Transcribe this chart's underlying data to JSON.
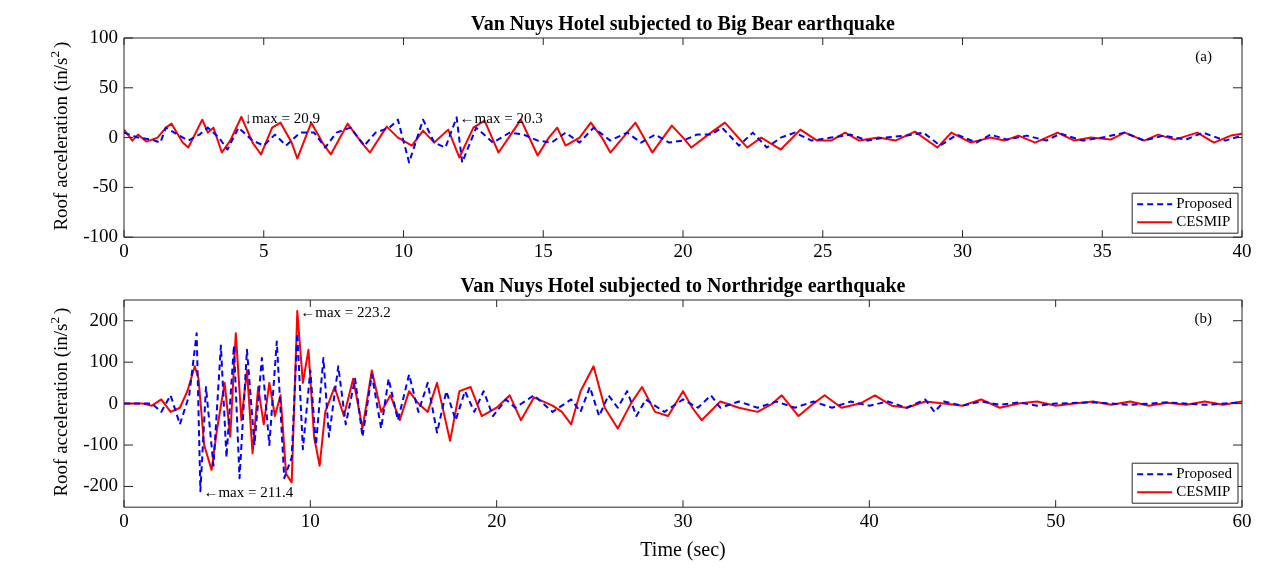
{
  "chart_data": [
    {
      "type": "line",
      "title": "Van Nuys Hotel subjected to Big Bear earthquake",
      "ylabel": "Roof acceleration (in/s$^{2}$)",
      "xlim": [
        0,
        40
      ],
      "xticks": [
        0,
        5,
        10,
        15,
        20,
        25,
        30,
        35,
        40
      ],
      "ylim": [
        -100,
        100
      ],
      "yticks": [
        -100,
        -50,
        0,
        50,
        100
      ],
      "grid": false,
      "legend": "bottom right",
      "marker": "none",
      "annotations": [
        {
          "text": "↓max = 20.9",
          "x": 4.2,
          "y": 20.9
        },
        {
          "text": "←max = 20.3",
          "x": 11.9,
          "y": 20.3
        },
        "(a)"
      ],
      "series": [
        {
          "name": "Proposed",
          "color": "#0000ff",
          "line_style": "dashed",
          "x": [
            0,
            0.5,
            1,
            1.3,
            1.5,
            1.8,
            2.3,
            2.7,
            3.0,
            3.4,
            3.7,
            4.1,
            4.6,
            5.0,
            5.4,
            5.8,
            6.3,
            6.8,
            7.2,
            7.6,
            8.1,
            8.6,
            9.0,
            9.5,
            9.8,
            10.2,
            10.7,
            11.1,
            11.5,
            11.9,
            12.1,
            12.6,
            13.2,
            13.8,
            14.3,
            14.8,
            15.3,
            15.8,
            16.3,
            16.8,
            17.4,
            18,
            18.5,
            19,
            19.5,
            20,
            20.5,
            21,
            21.4,
            22,
            22.5,
            23,
            23.5,
            24,
            24.6,
            25.3,
            26,
            26.6,
            27.2,
            28,
            28.6,
            29.2,
            29.8,
            30.5,
            31,
            31.6,
            32.3,
            33,
            33.5,
            34.3,
            35,
            35.8,
            36.5,
            37.2,
            38,
            38.6,
            39.4,
            40
          ],
          "values": [
            5,
            0,
            -2,
            -5,
            10,
            5,
            -3,
            3,
            10,
            0,
            -12,
            10,
            -3,
            -8,
            3,
            -8,
            5,
            5,
            -10,
            5,
            10,
            -8,
            5,
            10,
            18,
            -25,
            18,
            -5,
            -10,
            20.3,
            -25,
            10,
            -5,
            5,
            3,
            -3,
            -5,
            5,
            -5,
            10,
            -3,
            5,
            -5,
            3,
            -5,
            -3,
            3,
            3,
            10,
            -8,
            5,
            -10,
            0,
            5,
            -3,
            0,
            3,
            -3,
            0,
            2,
            5,
            -8,
            3,
            -5,
            3,
            -2,
            2,
            -3,
            4,
            -3,
            0,
            5,
            -3,
            2,
            -2,
            5,
            -3,
            2
          ]
        },
        {
          "name": "CESMIP",
          "color": "#ff0000",
          "line_style": "solid",
          "x": [
            0,
            0.3,
            0.5,
            0.8,
            1.2,
            1.5,
            1.7,
            2.1,
            2.3,
            2.8,
            3.0,
            3.2,
            3.5,
            3.8,
            4.2,
            4.6,
            4.9,
            5.3,
            5.6,
            6.0,
            6.2,
            6.7,
            7.1,
            7.4,
            8.0,
            8.5,
            8.8,
            9.4,
            9.8,
            10.3,
            10.7,
            11.1,
            11.6,
            12.0,
            12.5,
            12.9,
            13.4,
            14.2,
            14.8,
            15.2,
            15.5,
            15.8,
            16.3,
            16.7,
            17.1,
            17.4,
            18.3,
            18.9,
            19.6,
            20.0,
            20.3,
            21.0,
            21.5,
            22.3,
            22.8,
            23.5,
            24.2,
            24.8,
            25.3,
            25.8,
            26.3,
            27,
            27.6,
            28.3,
            29.1,
            29.6,
            30.3,
            31,
            31.5,
            32,
            32.6,
            33.4,
            34,
            34.6,
            35.3,
            35.8,
            36.5,
            37,
            37.6,
            38.4,
            39,
            39.6,
            40
          ],
          "values": [
            8,
            -3,
            3,
            -4,
            0,
            10,
            14,
            -5,
            -10,
            18,
            5,
            10,
            -15,
            -3,
            20.9,
            -5,
            -17,
            10,
            15,
            -5,
            -21,
            15,
            -5,
            -17,
            14,
            -5,
            -15,
            11,
            0,
            -8,
            7,
            -5,
            8,
            -20,
            10,
            17,
            -15,
            18,
            -18,
            0,
            10,
            -8,
            0,
            15,
            0,
            -15,
            15,
            -15,
            12,
            0,
            -10,
            5,
            15,
            -10,
            0,
            -12,
            8,
            -3,
            -3,
            5,
            -3,
            0,
            -3,
            6,
            -10,
            5,
            -5,
            0,
            -3,
            2,
            -5,
            5,
            -3,
            0,
            -2,
            5,
            -3,
            3,
            -2,
            5,
            -5,
            2,
            4
          ]
        }
      ]
    },
    {
      "type": "line",
      "title": "Van Nuys Hotel subjected to Northridge earthquake",
      "xlabel": "Time (sec)",
      "ylabel": "Roof acceleration (in/s$^{2}$)",
      "xlim": [
        0,
        60
      ],
      "xticks": [
        0,
        10,
        20,
        30,
        40,
        50,
        60
      ],
      "ylim": [
        -250,
        250
      ],
      "yticks": [
        -200,
        -100,
        0,
        100,
        200
      ],
      "grid": false,
      "legend": "bottom right",
      "marker": "none",
      "annotations": [
        {
          "text": "←max = 223.2",
          "x": 9.3,
          "y": 223.2
        },
        {
          "text": "←max = 211.4",
          "x": 4.1,
          "y": -211.4
        },
        "(b)"
      ],
      "series": [
        {
          "name": "Proposed",
          "color": "#0000ff",
          "line_style": "dashed",
          "x": [
            0,
            1.5,
            2,
            2.5,
            3,
            3.5,
            3.9,
            4.1,
            4.4,
            4.8,
            5.2,
            5.5,
            5.9,
            6.2,
            6.6,
            7.0,
            7.4,
            7.8,
            8.2,
            8.6,
            9.0,
            9.3,
            9.6,
            10.0,
            10.3,
            10.7,
            11.0,
            11.5,
            11.9,
            12.4,
            12.8,
            13.3,
            13.8,
            14.2,
            14.7,
            15.3,
            15.8,
            16.3,
            16.8,
            17.3,
            17.8,
            18.3,
            18.8,
            19.3,
            19.8,
            20.5,
            21,
            22,
            23,
            24,
            24.5,
            25,
            25.5,
            26,
            26.5,
            27,
            27.5,
            28,
            29,
            30,
            30.8,
            31.5,
            32,
            33,
            34,
            35,
            36,
            37,
            38,
            39,
            40,
            41,
            42,
            43,
            43.5,
            44,
            45,
            46,
            47,
            48,
            49,
            50,
            52,
            54,
            56,
            58,
            60
          ],
          "values": [
            0,
            0,
            -20,
            20,
            -50,
            20,
            170,
            -211.4,
            40,
            -150,
            140,
            -130,
            140,
            -180,
            130,
            -100,
            110,
            -100,
            150,
            -180,
            -130,
            170,
            -110,
            80,
            -100,
            110,
            -80,
            90,
            -50,
            60,
            -80,
            70,
            -60,
            60,
            -40,
            70,
            -20,
            50,
            -70,
            30,
            -40,
            30,
            -20,
            30,
            -30,
            10,
            -10,
            20,
            -20,
            10,
            -20,
            40,
            -30,
            20,
            -10,
            30,
            -30,
            10,
            -20,
            10,
            -10,
            20,
            -10,
            5,
            -10,
            5,
            -10,
            5,
            -10,
            5,
            -5,
            5,
            -10,
            10,
            -20,
            5,
            -5,
            5,
            -3,
            3,
            -5,
            0,
            3,
            -3,
            3,
            -3,
            3
          ]
        },
        {
          "name": "CESMIP",
          "color": "#ff0000",
          "line_style": "solid",
          "x": [
            0,
            1,
            1.5,
            2,
            2.5,
            3,
            3.4,
            3.8,
            4.0,
            4.3,
            4.7,
            5.0,
            5.4,
            5.7,
            6.0,
            6.3,
            6.6,
            6.9,
            7.2,
            7.5,
            7.8,
            8.1,
            8.4,
            8.7,
            9.0,
            9.3,
            9.6,
            9.9,
            10.2,
            10.5,
            10.8,
            11.3,
            11.8,
            12.3,
            12.8,
            13.3,
            13.8,
            14.3,
            14.8,
            15.3,
            15.8,
            16.3,
            16.8,
            17.5,
            18,
            18.6,
            19.2,
            20,
            20.7,
            21.3,
            22,
            23,
            23.5,
            24,
            24.5,
            25.2,
            25.8,
            26.5,
            27.2,
            27.8,
            28.5,
            29.2,
            30,
            30.5,
            31,
            32,
            33,
            34,
            34.8,
            35.3,
            36.2,
            37,
            37.6,
            38.5,
            39.5,
            40.3,
            41.2,
            42,
            43,
            44,
            45,
            46,
            47,
            48,
            49,
            50,
            51,
            52,
            53,
            54,
            55,
            56,
            57,
            58,
            59,
            60
          ],
          "values": [
            0,
            0,
            -5,
            10,
            -20,
            -10,
            30,
            90,
            60,
            -100,
            -160,
            -60,
            50,
            -80,
            170,
            -40,
            80,
            -120,
            40,
            -50,
            50,
            -30,
            20,
            -170,
            -190,
            223.2,
            50,
            130,
            -80,
            -150,
            -20,
            40,
            -30,
            60,
            -60,
            80,
            -20,
            20,
            -40,
            30,
            0,
            -20,
            50,
            -90,
            30,
            40,
            -30,
            -10,
            20,
            -40,
            15,
            -5,
            -20,
            -50,
            30,
            90,
            -10,
            -60,
            0,
            40,
            -20,
            -30,
            30,
            -10,
            -40,
            5,
            -10,
            -20,
            0,
            20,
            -30,
            0,
            20,
            -10,
            0,
            20,
            -5,
            -10,
            5,
            0,
            -5,
            10,
            -10,
            0,
            5,
            -5,
            0,
            5,
            -3,
            5,
            -5,
            2,
            -3,
            5,
            -3,
            5
          ]
        }
      ]
    }
  ]
}
